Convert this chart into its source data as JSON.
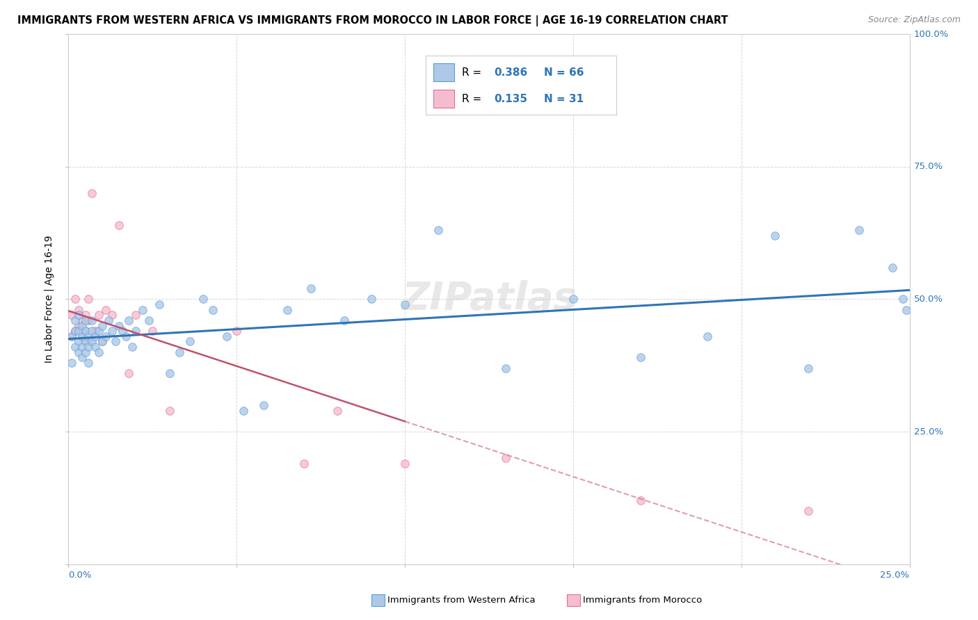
{
  "title": "IMMIGRANTS FROM WESTERN AFRICA VS IMMIGRANTS FROM MOROCCO IN LABOR FORCE | AGE 16-19 CORRELATION CHART",
  "source": "Source: ZipAtlas.com",
  "xlim": [
    0,
    0.25
  ],
  "ylim": [
    0,
    1.0
  ],
  "blue_R": 0.386,
  "blue_N": 66,
  "pink_R": 0.135,
  "pink_N": 31,
  "blue_color": "#adc8e8",
  "pink_color": "#f5bcd0",
  "blue_edge_color": "#5b9bd5",
  "pink_edge_color": "#e07090",
  "blue_line_color": "#2e75b6",
  "pink_line_color": "#c0506a",
  "pink_dash_color": "#d08090",
  "legend_color": "#2e75b6",
  "watermark": "ZIPatlas",
  "blue_scatter_x": [
    0.001,
    0.001,
    0.002,
    0.002,
    0.002,
    0.003,
    0.003,
    0.003,
    0.003,
    0.004,
    0.004,
    0.004,
    0.004,
    0.005,
    0.005,
    0.005,
    0.005,
    0.006,
    0.006,
    0.006,
    0.007,
    0.007,
    0.007,
    0.008,
    0.008,
    0.009,
    0.009,
    0.01,
    0.01,
    0.011,
    0.012,
    0.013,
    0.014,
    0.015,
    0.016,
    0.017,
    0.018,
    0.019,
    0.02,
    0.022,
    0.024,
    0.027,
    0.03,
    0.033,
    0.036,
    0.04,
    0.043,
    0.047,
    0.052,
    0.058,
    0.065,
    0.072,
    0.082,
    0.09,
    0.1,
    0.11,
    0.13,
    0.15,
    0.17,
    0.19,
    0.21,
    0.22,
    0.235,
    0.245,
    0.248,
    0.249
  ],
  "blue_scatter_y": [
    0.43,
    0.38,
    0.44,
    0.41,
    0.46,
    0.42,
    0.44,
    0.4,
    0.47,
    0.41,
    0.43,
    0.45,
    0.39,
    0.42,
    0.44,
    0.4,
    0.46,
    0.41,
    0.43,
    0.38,
    0.44,
    0.42,
    0.46,
    0.41,
    0.43,
    0.4,
    0.44,
    0.42,
    0.45,
    0.43,
    0.46,
    0.44,
    0.42,
    0.45,
    0.44,
    0.43,
    0.46,
    0.41,
    0.44,
    0.48,
    0.46,
    0.49,
    0.36,
    0.4,
    0.42,
    0.5,
    0.48,
    0.43,
    0.29,
    0.3,
    0.48,
    0.52,
    0.46,
    0.5,
    0.49,
    0.63,
    0.37,
    0.5,
    0.39,
    0.43,
    0.62,
    0.37,
    0.63,
    0.56,
    0.5,
    0.48
  ],
  "pink_scatter_x": [
    0.001,
    0.001,
    0.002,
    0.002,
    0.003,
    0.003,
    0.004,
    0.004,
    0.005,
    0.005,
    0.006,
    0.006,
    0.006,
    0.007,
    0.008,
    0.009,
    0.01,
    0.011,
    0.013,
    0.015,
    0.018,
    0.02,
    0.025,
    0.03,
    0.05,
    0.07,
    0.08,
    0.1,
    0.13,
    0.17,
    0.22
  ],
  "pink_scatter_y": [
    0.43,
    0.47,
    0.44,
    0.5,
    0.45,
    0.48,
    0.43,
    0.46,
    0.44,
    0.47,
    0.42,
    0.46,
    0.5,
    0.7,
    0.44,
    0.47,
    0.42,
    0.48,
    0.47,
    0.64,
    0.36,
    0.47,
    0.44,
    0.29,
    0.44,
    0.19,
    0.29,
    0.19,
    0.2,
    0.12,
    0.1
  ]
}
